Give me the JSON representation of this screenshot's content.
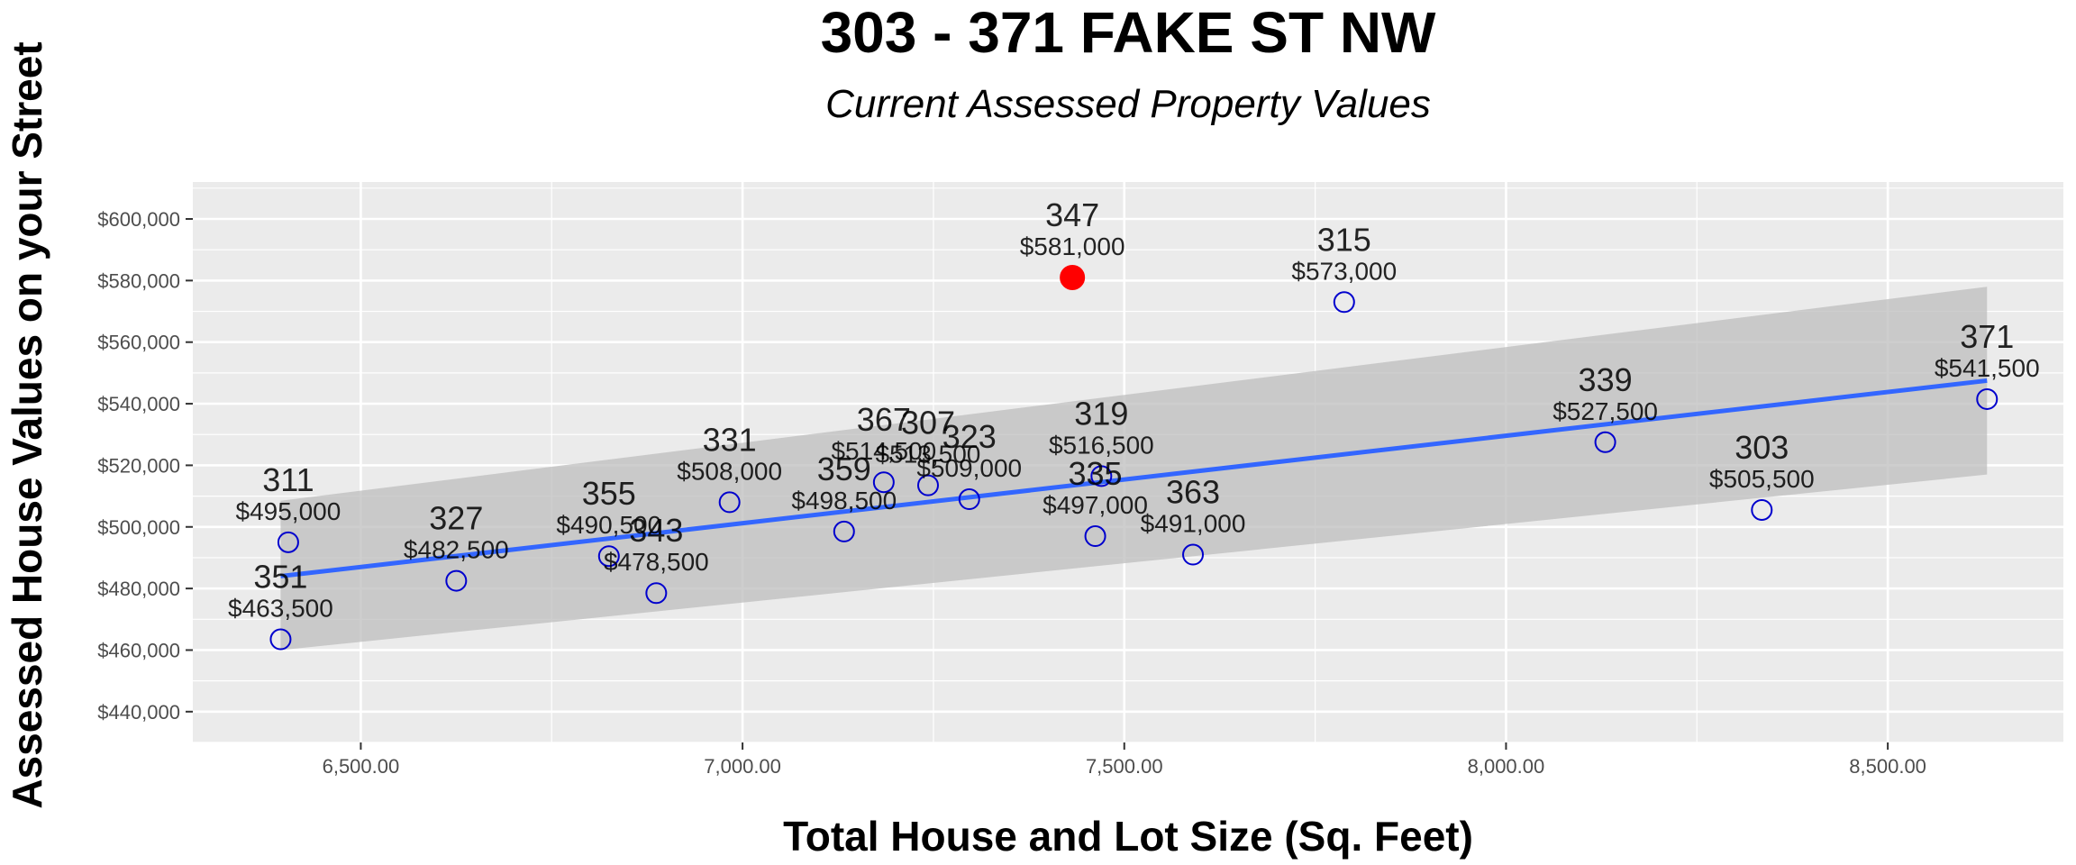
{
  "chart_data": {
    "type": "scatter",
    "title": "303 - 371  FAKE ST NW",
    "subtitle": "Current Assessed Property Values",
    "xlabel": "Total House and Lot Size (Sq. Feet)",
    "ylabel": "Assessed House Values on your Street",
    "xlim": [
      6280,
      8730
    ],
    "ylim": [
      430000,
      612000
    ],
    "x_ticks": [
      6500,
      7000,
      7500,
      8000,
      8500
    ],
    "x_tick_labels": [
      "6,500.00",
      "7,000.00",
      "7,500.00",
      "8,000.00",
      "8,500.00"
    ],
    "y_ticks": [
      440000,
      460000,
      480000,
      500000,
      520000,
      540000,
      560000,
      580000,
      600000
    ],
    "y_tick_labels": [
      "$440,000",
      "$460,000",
      "$480,000",
      "$500,000",
      "$520,000",
      "$540,000",
      "$560,000",
      "$580,000",
      "$600,000"
    ],
    "grid": true,
    "panel_color": "#ebebeb",
    "point_color": "#0000cd",
    "highlight_color": "#ff0000",
    "trend_color": "#3366ff",
    "band_color": "#bdbdbd",
    "trend_line": {
      "x": [
        6395,
        8630
      ],
      "y": [
        484000,
        547500
      ]
    },
    "confidence_band": {
      "x": [
        6395,
        8630
      ],
      "lower": [
        460000,
        517000
      ],
      "upper": [
        508500,
        578000
      ]
    },
    "points": [
      {
        "label": "303",
        "value_label": "$505,500",
        "x": 8335,
        "y": 505500,
        "highlight": false
      },
      {
        "label": "307",
        "value_label": "$513,500",
        "x": 7243,
        "y": 513500,
        "highlight": false
      },
      {
        "label": "311",
        "value_label": "$495,000",
        "x": 6405,
        "y": 495000,
        "highlight": false
      },
      {
        "label": "315",
        "value_label": "$573,000",
        "x": 7788,
        "y": 573000,
        "highlight": false
      },
      {
        "label": "319",
        "value_label": "$516,500",
        "x": 7470,
        "y": 516500,
        "highlight": false
      },
      {
        "label": "323",
        "value_label": "$509,000",
        "x": 7297,
        "y": 509000,
        "highlight": false
      },
      {
        "label": "327",
        "value_label": "$482,500",
        "x": 6625,
        "y": 482500,
        "highlight": false
      },
      {
        "label": "331",
        "value_label": "$508,000",
        "x": 6983,
        "y": 508000,
        "highlight": false
      },
      {
        "label": "335",
        "value_label": "$497,000",
        "x": 7462,
        "y": 497000,
        "highlight": false
      },
      {
        "label": "339",
        "value_label": "$527,500",
        "x": 8130,
        "y": 527500,
        "highlight": false
      },
      {
        "label": "343",
        "value_label": "$478,500",
        "x": 6887,
        "y": 478500,
        "highlight": false
      },
      {
        "label": "347",
        "value_label": "$581,000",
        "x": 7432,
        "y": 581000,
        "highlight": true
      },
      {
        "label": "351",
        "value_label": "$463,500",
        "x": 6395,
        "y": 463500,
        "highlight": false
      },
      {
        "label": "355",
        "value_label": "$490,500",
        "x": 6825,
        "y": 490500,
        "highlight": false
      },
      {
        "label": "359",
        "value_label": "$498,500",
        "x": 7133,
        "y": 498500,
        "highlight": false
      },
      {
        "label": "363",
        "value_label": "$491,000",
        "x": 7590,
        "y": 491000,
        "highlight": false
      },
      {
        "label": "367",
        "value_label": "$514,500",
        "x": 7185,
        "y": 514500,
        "highlight": false
      },
      {
        "label": "371",
        "value_label": "$541,500",
        "x": 8630,
        "y": 541500,
        "highlight": false
      }
    ]
  }
}
